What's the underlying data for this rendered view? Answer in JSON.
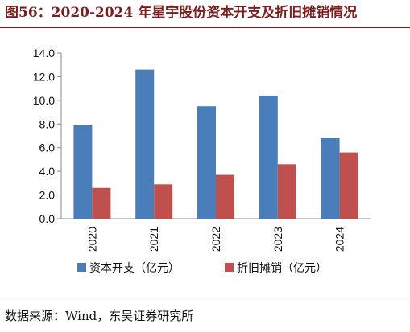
{
  "header": {
    "title": "图56：2020-2024 年星宇股份资本开支及折旧摊销情况"
  },
  "footer": {
    "source": "数据来源：Wind，东吴证券研究所"
  },
  "chart_data": {
    "type": "bar",
    "categories": [
      "2020",
      "2021",
      "2022",
      "2023",
      "2024"
    ],
    "series": [
      {
        "name": "资本开支（亿元）",
        "color": "#4a7ebb",
        "values": [
          7.9,
          12.6,
          9.5,
          10.4,
          6.8
        ]
      },
      {
        "name": "折旧摊销（亿元）",
        "color": "#c0504d",
        "values": [
          2.6,
          2.9,
          3.7,
          4.6,
          5.6
        ]
      }
    ],
    "ylim": [
      0,
      14
    ],
    "yticks": [
      "0.0",
      "2.0",
      "4.0",
      "6.0",
      "8.0",
      "10.0",
      "12.0",
      "14.0"
    ],
    "xlabel": "",
    "ylabel": "",
    "grid": false,
    "legend_position": "bottom"
  }
}
